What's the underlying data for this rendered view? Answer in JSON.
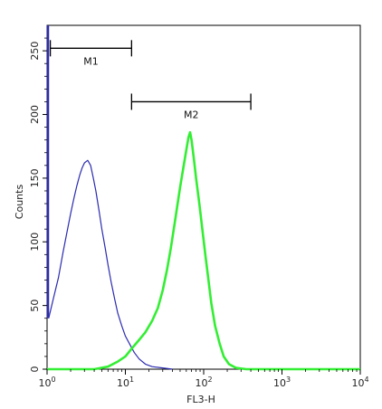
{
  "chart_data": {
    "type": "line",
    "xlabel": "FL3-H",
    "ylabel": "Counts",
    "x_scale": "log",
    "xlim": [
      1,
      10000
    ],
    "ylim": [
      0,
      270
    ],
    "x_ticks": [
      {
        "base": "10",
        "exp": "0",
        "value": 1
      },
      {
        "base": "10",
        "exp": "1",
        "value": 10
      },
      {
        "base": "10",
        "exp": "2",
        "value": 100
      },
      {
        "base": "10",
        "exp": "3",
        "value": 1000
      },
      {
        "base": "10",
        "exp": "4",
        "value": 10000
      }
    ],
    "y_ticks": [
      "0",
      "50",
      "100",
      "150",
      "200",
      "250"
    ],
    "grid": false,
    "series": [
      {
        "color": "#2b2bb0",
        "points": [
          [
            1.05,
            40
          ],
          [
            1.2,
            55
          ],
          [
            1.4,
            72
          ],
          [
            1.6,
            92
          ],
          [
            1.8,
            108
          ],
          [
            2.0,
            122
          ],
          [
            2.2,
            134
          ],
          [
            2.4,
            144
          ],
          [
            2.6,
            152
          ],
          [
            2.8,
            158
          ],
          [
            3.0,
            162
          ],
          [
            3.3,
            164
          ],
          [
            3.6,
            160
          ],
          [
            3.9,
            150
          ],
          [
            4.2,
            140
          ],
          [
            4.6,
            125
          ],
          [
            5.0,
            110
          ],
          [
            5.5,
            96
          ],
          [
            6.0,
            82
          ],
          [
            6.6,
            68
          ],
          [
            7.3,
            55
          ],
          [
            8.0,
            44
          ],
          [
            9.0,
            34
          ],
          [
            10,
            26
          ],
          [
            11.5,
            19
          ],
          [
            13,
            13
          ],
          [
            15,
            8
          ],
          [
            18,
            4
          ],
          [
            22,
            2
          ],
          [
            30,
            1
          ],
          [
            40,
            0
          ]
        ]
      },
      {
        "color": "#33ee33",
        "points": [
          [
            1,
            0
          ],
          [
            4,
            0
          ],
          [
            6,
            2
          ],
          [
            8,
            6
          ],
          [
            10,
            10
          ],
          [
            12,
            16
          ],
          [
            15,
            23
          ],
          [
            18,
            29
          ],
          [
            22,
            38
          ],
          [
            26,
            48
          ],
          [
            30,
            62
          ],
          [
            34,
            78
          ],
          [
            38,
            95
          ],
          [
            42,
            112
          ],
          [
            46,
            128
          ],
          [
            50,
            143
          ],
          [
            55,
            158
          ],
          [
            60,
            172
          ],
          [
            64,
            182
          ],
          [
            67,
            186
          ],
          [
            70,
            180
          ],
          [
            75,
            165
          ],
          [
            80,
            150
          ],
          [
            88,
            130
          ],
          [
            96,
            110
          ],
          [
            105,
            90
          ],
          [
            115,
            70
          ],
          [
            125,
            52
          ],
          [
            140,
            34
          ],
          [
            160,
            20
          ],
          [
            180,
            10
          ],
          [
            210,
            4
          ],
          [
            260,
            1
          ],
          [
            350,
            0
          ],
          [
            10000,
            0
          ]
        ]
      }
    ],
    "markers": [
      {
        "label": "M1",
        "x_start": 1.1,
        "x_end": 12,
        "y": 252
      },
      {
        "label": "M2",
        "x_start": 12,
        "x_end": 400,
        "y": 210
      }
    ]
  }
}
